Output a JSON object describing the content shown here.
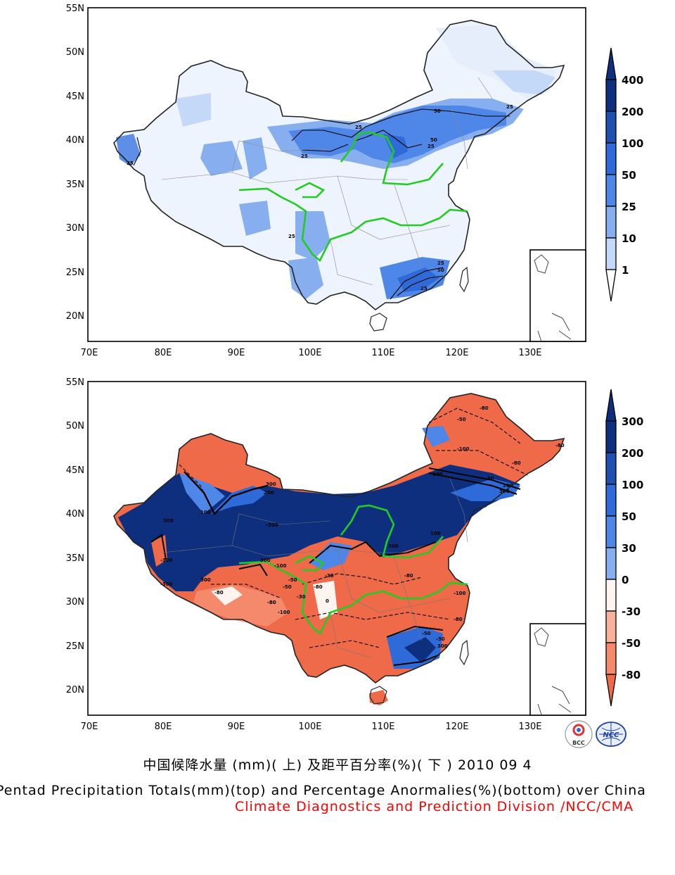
{
  "panels": [
    {
      "id": "top",
      "lat_ticks": [
        "55N",
        "50N",
        "45N",
        "40N",
        "35N",
        "30N",
        "25N",
        "20N"
      ],
      "lon_ticks": [
        "70E",
        "80E",
        "90E",
        "100E",
        "110E",
        "120E",
        "130E"
      ],
      "colorbar": {
        "labels": [
          "400",
          "200",
          "100",
          "50",
          "25",
          "10",
          "1"
        ],
        "colors": [
          "#0d2f7e",
          "#1f4fb0",
          "#2f6bd8",
          "#4f87e8",
          "#87aff0",
          "#c4d8f8",
          "#ffffff"
        ]
      },
      "contour_labels": [
        "50",
        "25",
        "25",
        "25",
        "50",
        "25",
        "25",
        "25",
        "25",
        "50",
        "25"
      ]
    },
    {
      "id": "bottom",
      "lat_ticks": [
        "55N",
        "50N",
        "45N",
        "40N",
        "35N",
        "30N",
        "25N",
        "20N"
      ],
      "lon_ticks": [
        "70E",
        "80E",
        "90E",
        "100E",
        "110E",
        "120E",
        "130E"
      ],
      "colorbar": {
        "labels": [
          "300",
          "200",
          "100",
          "50",
          "30",
          "0",
          "-30",
          "-50",
          "-80"
        ],
        "colors": [
          "#0d2f7e",
          "#1f4fb0",
          "#2f6bd8",
          "#4f87e8",
          "#87aff0",
          "#c4d8f8",
          "#fff5f0",
          "#f8b29c",
          "#f4896c",
          "#ee6a48"
        ]
      },
      "contour_labels": [
        "-80",
        "-50",
        "-100",
        "-80",
        "-80",
        "100",
        "-30",
        "200",
        "300",
        "300",
        "200",
        "100",
        "300",
        "-300",
        "100",
        "-300",
        "300",
        "-300",
        "300",
        "-50",
        "-100",
        "-80",
        "-30",
        "-80",
        "-50",
        "300",
        "0",
        "-30",
        "-80",
        "-100",
        "-80",
        "-50",
        "-30",
        "-100",
        "-80",
        "300"
      ]
    }
  ],
  "caption": {
    "cn": "中国候降水量 (mm)( 上) 及距平百分率(%)( 下 ) 2010 09 4",
    "en": "Pentad Precipitation Totals(mm)(top) and Percentage Anormalies(%)(bottom) over China",
    "org": "Climate Diagnostics and Prediction Division /NCC/CMA"
  },
  "logos": [
    "BCC",
    "NCC"
  ]
}
